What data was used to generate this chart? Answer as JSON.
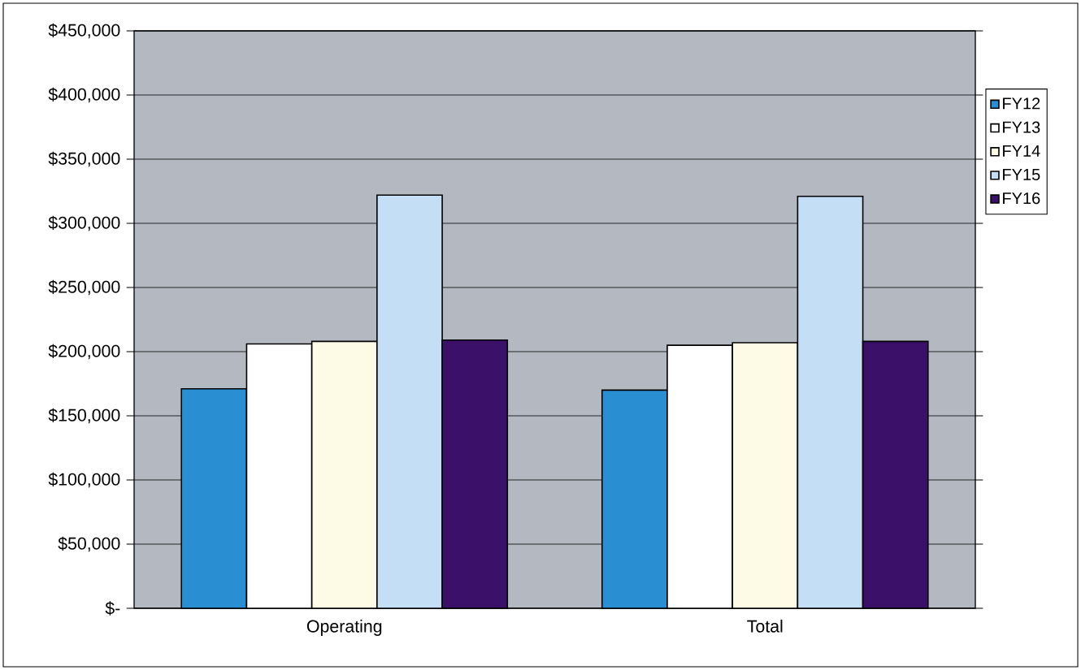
{
  "chart_data": {
    "type": "bar",
    "categories": [
      "Operating",
      "Total"
    ],
    "series": [
      {
        "name": "FY12",
        "color": "#2a8fd2",
        "values": [
          171000,
          170000
        ]
      },
      {
        "name": "FY13",
        "color": "#ffffff",
        "values": [
          206000,
          205000
        ]
      },
      {
        "name": "FY14",
        "color": "#fdfbe6",
        "values": [
          208000,
          207000
        ]
      },
      {
        "name": "FY15",
        "color": "#c4def5",
        "values": [
          322000,
          321000
        ]
      },
      {
        "name": "FY16",
        "color": "#3a1068",
        "values": [
          209000,
          208000
        ]
      }
    ],
    "ylim": [
      0,
      450000
    ],
    "yticks": [
      {
        "value": 0,
        "label": "$-"
      },
      {
        "value": 50000,
        "label": "$50,000"
      },
      {
        "value": 100000,
        "label": "$100,000"
      },
      {
        "value": 150000,
        "label": "$150,000"
      },
      {
        "value": 200000,
        "label": "$200,000"
      },
      {
        "value": 250000,
        "label": "$250,000"
      },
      {
        "value": 300000,
        "label": "$300,000"
      },
      {
        "value": 350000,
        "label": "$350,000"
      },
      {
        "value": 400000,
        "label": "$400,000"
      },
      {
        "value": 450000,
        "label": "$450,000"
      }
    ],
    "grid": "y",
    "legend": "right"
  }
}
